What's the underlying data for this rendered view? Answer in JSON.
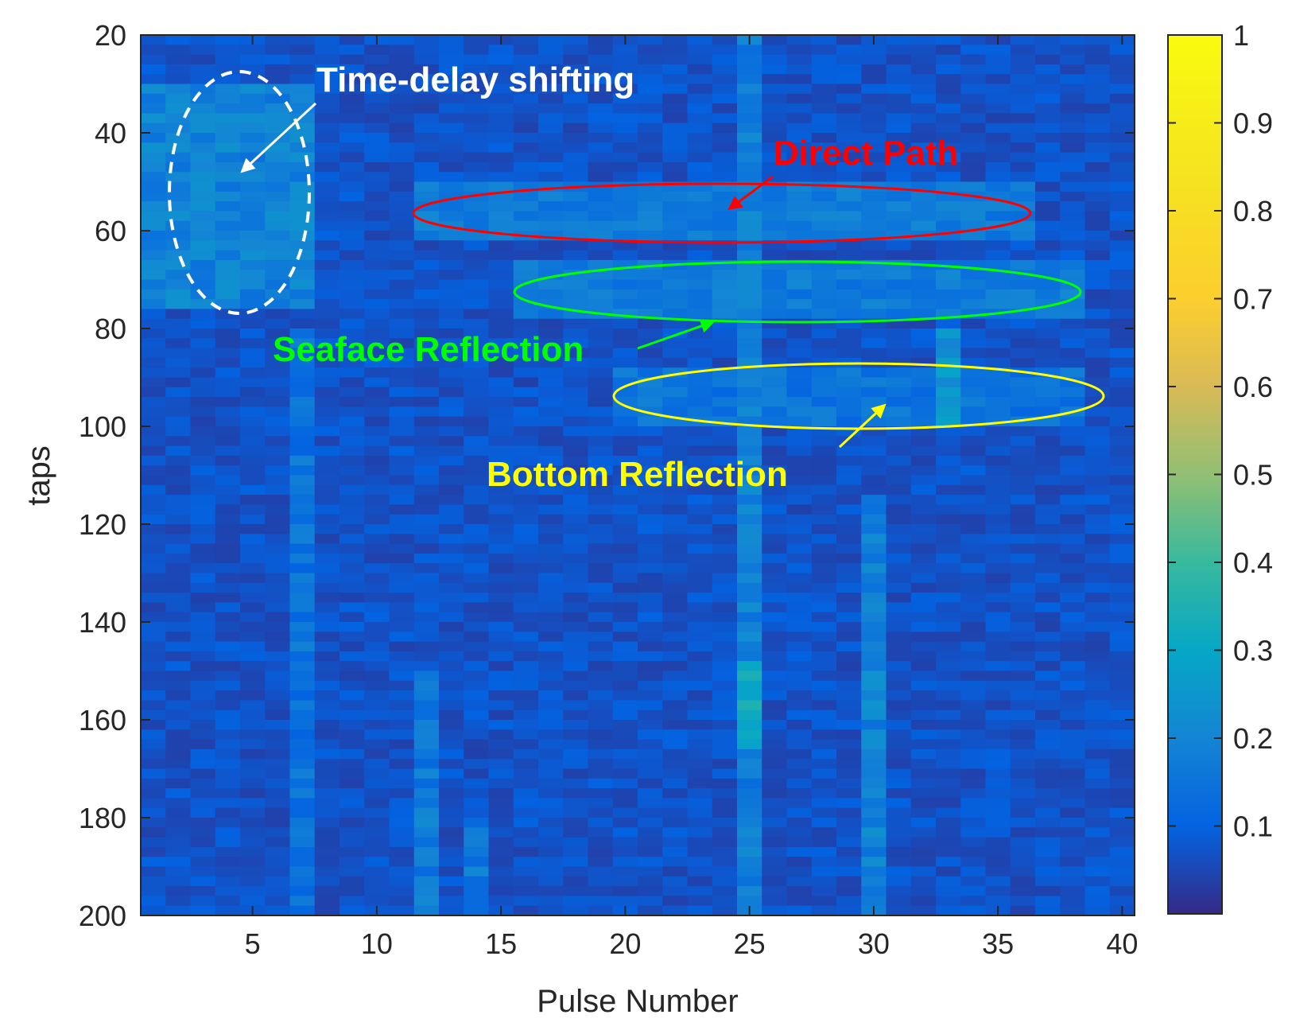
{
  "chart_data": {
    "type": "heatmap",
    "title": "",
    "xlabel": "Pulse Number",
    "ylabel": "taps",
    "xlim": [
      0.5,
      40.5
    ],
    "ylim": [
      20,
      200
    ],
    "y_reversed": true,
    "x_ticks": [
      5,
      10,
      15,
      20,
      25,
      30,
      35,
      40
    ],
    "y_ticks": [
      20,
      40,
      60,
      80,
      100,
      120,
      140,
      160,
      180,
      200
    ],
    "colorbar": {
      "colormap": "parula",
      "range": [
        0,
        1
      ],
      "ticks": [
        "0.1",
        "0.2",
        "0.3",
        "0.4",
        "0.5",
        "0.6",
        "0.7",
        "0.8",
        "0.9",
        "1"
      ],
      "tick_values": [
        0.1,
        0.2,
        0.3,
        0.4,
        0.5,
        0.6,
        0.7,
        0.8,
        0.9,
        1.0
      ]
    },
    "grid": "off",
    "n_pulses": 40,
    "tap_range": [
      20,
      200
    ],
    "features": {
      "direct_path": {
        "taps": [
          50,
          62
        ],
        "pulses": [
          12,
          36
        ],
        "level": 0.17
      },
      "seaface_reflection": {
        "taps": [
          66,
          78
        ],
        "pulses": [
          16,
          38
        ],
        "level": 0.17
      },
      "bottom_reflection": {
        "taps": [
          88,
          100
        ],
        "pulses": [
          20,
          38
        ],
        "level": 0.15
      },
      "time_delay_shift": {
        "taps": [
          30,
          76
        ],
        "pulses": [
          1,
          7
        ],
        "level": 0.19
      },
      "bright_columns": [
        {
          "pulse": 25,
          "taps": [
            20,
            200
          ],
          "level": 0.18,
          "peak_taps": [
            148,
            165
          ],
          "peak_level": 0.32
        },
        {
          "pulse": 30,
          "taps": [
            115,
            200
          ],
          "level": 0.19
        },
        {
          "pulse": 12,
          "taps": [
            150,
            200
          ],
          "level": 0.17
        },
        {
          "pulse": 7,
          "taps": [
            80,
            200
          ],
          "level": 0.15
        },
        {
          "pulse": 14,
          "taps": [
            180,
            200
          ],
          "level": 0.16
        },
        {
          "pulse": 33,
          "taps": [
            80,
            100
          ],
          "level": 0.24
        }
      ],
      "background_level": 0.07
    },
    "annotations": [
      {
        "text": "Time-delay shifting",
        "color": "#ffffff",
        "shape": "dashed-ellipse",
        "arrow": true
      },
      {
        "text": "Direct Path",
        "color": "#ff0000",
        "shape": "ellipse",
        "arrow": true
      },
      {
        "text": "Seaface Reflection",
        "color": "#00ff00",
        "shape": "ellipse",
        "arrow": true
      },
      {
        "text": "Bottom Reflection",
        "color": "#ffff00",
        "shape": "ellipse",
        "arrow": true
      }
    ]
  }
}
